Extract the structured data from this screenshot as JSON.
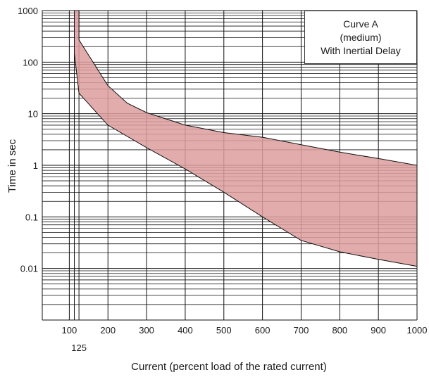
{
  "chart_data": {
    "type": "area",
    "title": "",
    "xlabel": "Current (percent load of the rated current)",
    "ylabel": "Time in sec",
    "x_scale": "linear",
    "y_scale": "log",
    "xlim": [
      30,
      1000
    ],
    "ylim": [
      0.001,
      1000
    ],
    "grid": true,
    "x_ticks": [
      100,
      200,
      300,
      400,
      500,
      600,
      700,
      800,
      900,
      1000
    ],
    "x_extra_tick": 125,
    "y_ticks": [
      1000,
      100,
      10,
      1,
      0.1,
      0.01
    ],
    "fill_color": "#dd9e9e",
    "legend": {
      "position": "top-right",
      "lines": [
        "Curve A",
        "(medium)",
        "With Inertial Delay"
      ]
    },
    "upper_boundary": {
      "x": [
        125,
        125,
        200,
        250,
        300,
        400,
        500,
        600,
        700,
        800,
        900,
        1000
      ],
      "y": [
        1000,
        270,
        35,
        16,
        10.5,
        6,
        4.3,
        3.5,
        2.5,
        1.8,
        1.35,
        1.0
      ]
    },
    "lower_boundary": {
      "x": [
        113,
        113,
        125,
        200,
        300,
        400,
        500,
        600,
        700,
        800,
        900,
        1000
      ],
      "y": [
        1000,
        150,
        25,
        6,
        2.2,
        0.85,
        0.3,
        0.1,
        0.035,
        0.021,
        0.015,
        0.011
      ]
    }
  }
}
